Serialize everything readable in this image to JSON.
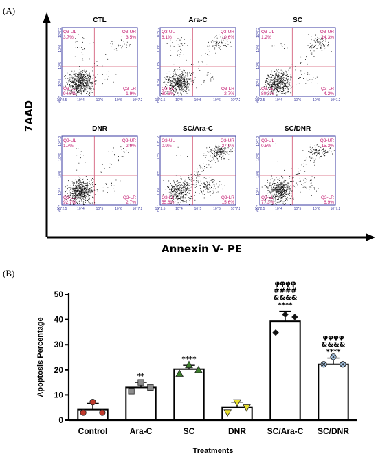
{
  "panel_a": {
    "label": "(A)",
    "y_label": "7AAD",
    "x_label": "Annexin V- PE",
    "plots": [
      {
        "title": "CTL",
        "ul": "Q3-UL",
        "ur": "Q3-UR",
        "ll": "Q3-LL",
        "lr": "Q3-LR",
        "ul_v": "3.7%",
        "ur_v": "3.5%",
        "ll_v": "94.0%",
        "lr_v": "1.9%"
      },
      {
        "title": "Ara-C",
        "ul": "Q3-UL",
        "ur": "Q3-UR",
        "ll": "Q3-LL",
        "lr": "Q3-LR",
        "ul_v": "6.1%",
        "ur_v": "10.6%",
        "ll_v": "80.6%",
        "lr_v": "2.7%"
      },
      {
        "title": "SC",
        "ul": "Q3-UL",
        "ur": "Q3-UR",
        "ll": "Q3-LL",
        "lr": "Q3-LR",
        "ul_v": "1.2%",
        "ur_v": "14.3%",
        "ll_v": "80.3%",
        "lr_v": "4.2%"
      },
      {
        "title": "DNR",
        "ul": "Q3-UL",
        "ur": "Q3-UR",
        "ll": "Q3-LL",
        "lr": "Q3-LR",
        "ul_v": "1.7%",
        "ur_v": "2.9%",
        "ll_v": "92.7%",
        "lr_v": "2.7%"
      },
      {
        "title": "SC/Ara-C",
        "ul": "Q3-UL",
        "ur": "Q3-UR",
        "ll": "Q3-LL",
        "lr": "Q3-LR",
        "ul_v": "0.9%",
        "ur_v": "27.9%",
        "ll_v": "55.6%",
        "lr_v": "15.6%"
      },
      {
        "title": "SC/DNR",
        "ul": "Q3-UL",
        "ur": "Q3-UR",
        "ll": "Q3-LL",
        "lr": "Q3-LR",
        "ul_v": "0.5%",
        "ur_v": "15.3%",
        "ll_v": "77.3%",
        "lr_v": "6.9%"
      }
    ],
    "x_ticks": [
      "10^2.5",
      "10^4",
      "10^5",
      "10^6",
      "10^7.2"
    ],
    "y_ticks": [
      "10^2.7",
      "10^4",
      "10^5",
      "10^6",
      "10^7.2"
    ]
  },
  "panel_b": {
    "label": "(B)"
  },
  "chart_data": {
    "type": "bar",
    "categories": [
      "Control",
      "Ara-C",
      "SC",
      "DNR",
      "SC/Ara-C",
      "SC/DNR"
    ],
    "values": [
      4.2,
      13.0,
      20.3,
      5.0,
      39.3,
      22.2
    ],
    "errors": [
      2.5,
      2.0,
      1.5,
      2.2,
      4.0,
      2.5
    ],
    "points": [
      [
        3.0,
        7.2,
        3.0
      ],
      [
        11.5,
        15.0,
        13.0
      ],
      [
        18.5,
        22.0,
        20.0
      ],
      [
        3.0,
        7.0,
        5.0
      ],
      [
        34.8,
        42.0,
        41.0
      ],
      [
        22.2,
        25.2,
        22.2
      ]
    ],
    "markers": [
      "circle",
      "square",
      "triangle-up",
      "triangle-down",
      "diamond",
      "crossed-circle"
    ],
    "marker_colors": [
      "#c0392b",
      "#8c8c8c",
      "#3a7d2a",
      "#e8e030",
      "#111111",
      "#a8c8e8"
    ],
    "significance": [
      [],
      [
        "**"
      ],
      [
        "****"
      ],
      [],
      [
        "φφφφ",
        "####",
        "&&&&",
        "****"
      ],
      [
        "φφφφ",
        "&&&&",
        "****"
      ]
    ],
    "ylabel": "Apoptosis Percentage",
    "xlabel": "Treatments",
    "ylim": [
      0,
      50
    ],
    "yticks": [
      0,
      10,
      20,
      30,
      40,
      50
    ]
  }
}
